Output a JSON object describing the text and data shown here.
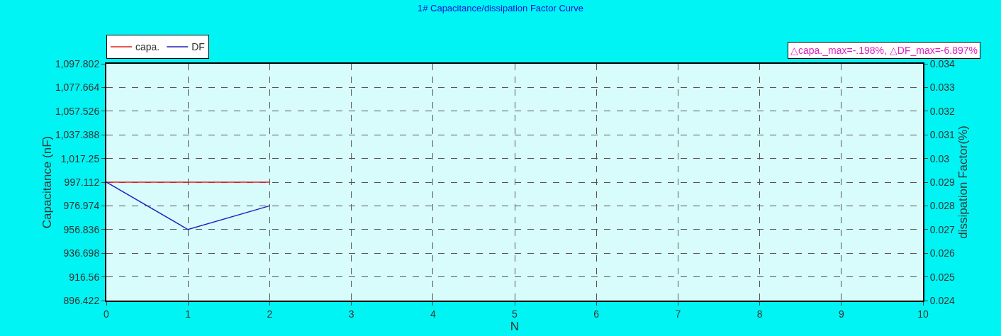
{
  "chart_data": {
    "type": "line",
    "title": "1# Capacitance/dissipation Factor Curve",
    "xlabel": "N",
    "ylabel": "Capacitance (nF)",
    "y2label": "dissipation Factor(%)",
    "x": [
      0,
      1,
      2
    ],
    "series": [
      {
        "name": "capa.",
        "color": "#e02020",
        "values": [
          997.1,
          997.1,
          997.1
        ]
      },
      {
        "name": "DF",
        "color": "#2020c0",
        "axis": "y2",
        "values": [
          0.029,
          0.027,
          0.028
        ]
      }
    ],
    "xlim": [
      0,
      10
    ],
    "xticks": [
      0,
      1,
      2,
      3,
      4,
      5,
      6,
      7,
      8,
      9,
      10
    ],
    "ylim": [
      896.422,
      1097.802
    ],
    "yticks": [
      896.422,
      916.56,
      936.698,
      956.836,
      976.974,
      997.112,
      {
        "value": 1017.25,
        "label": "1,017.25"
      },
      {
        "value": 1037.388,
        "label": "1,037.388"
      },
      {
        "value": 1057.526,
        "label": "1,057.526"
      },
      {
        "value": 1077.664,
        "label": "1,077.664"
      },
      {
        "value": 1097.802,
        "label": "1,097.802"
      }
    ],
    "y2lim": [
      0.024,
      0.034
    ],
    "y2ticks": [
      0.024,
      0.025,
      0.026,
      0.027,
      0.028,
      0.029,
      0.03,
      0.031,
      0.032,
      0.033,
      0.034
    ],
    "annotations": [
      "△capa._max=-.198%, △DF_max=-6.897%"
    ],
    "grid": true,
    "legend": "top left",
    "marker": "none",
    "line_style": "solid"
  }
}
